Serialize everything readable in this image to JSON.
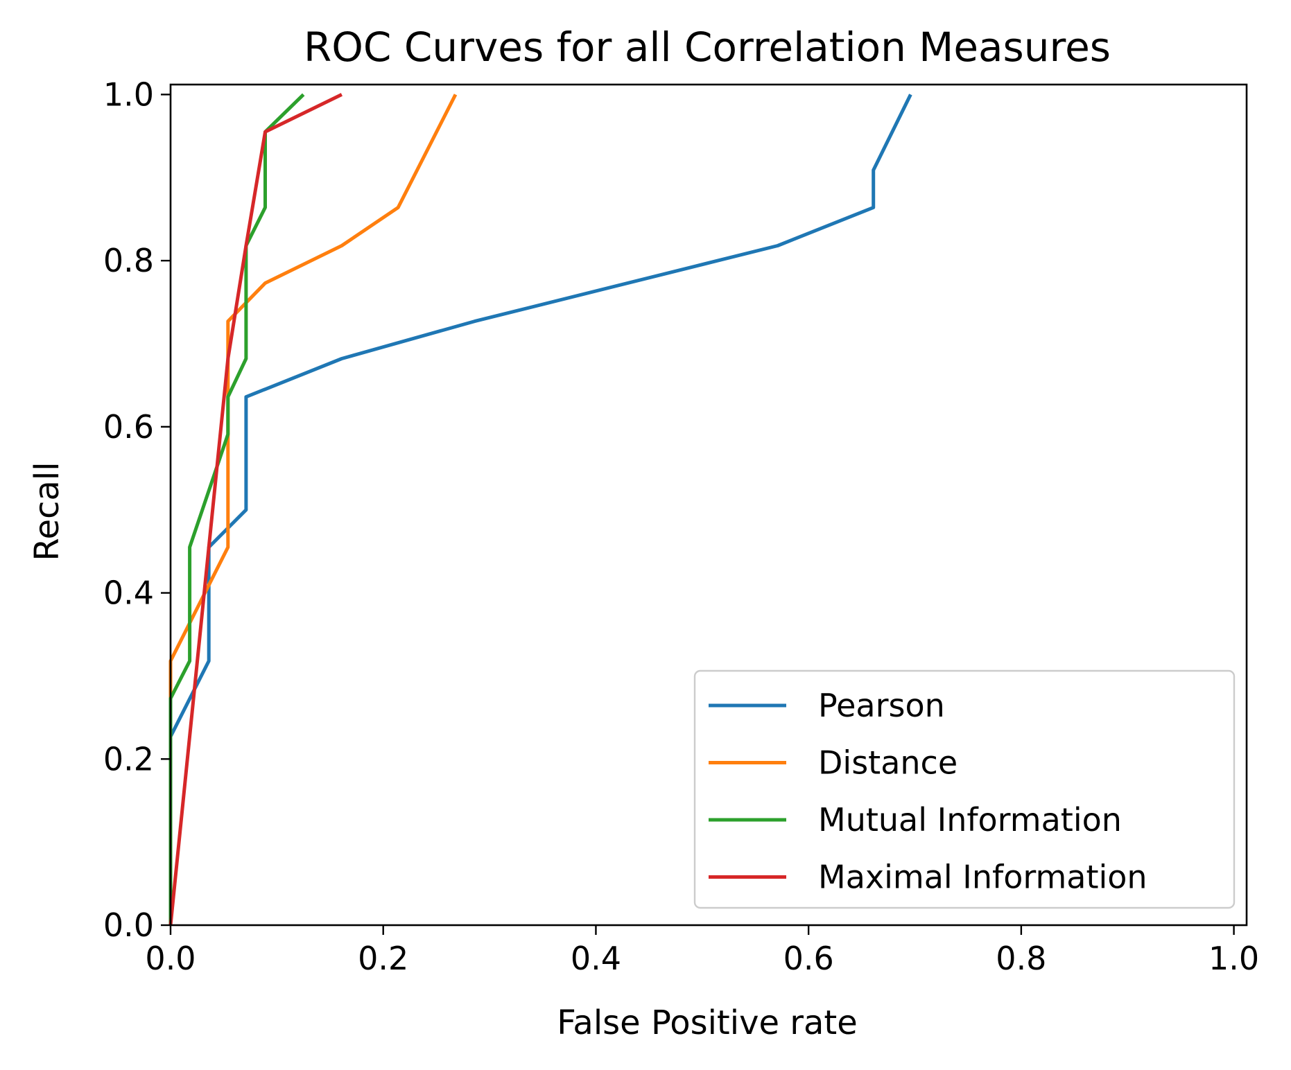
{
  "chart_data": {
    "type": "line",
    "title": "ROC Curves for all Correlation Measures",
    "xlabel": "False Positive rate",
    "ylabel": "Recall",
    "xlim": [
      0.0,
      1.0
    ],
    "ylim": [
      0.0,
      1.0
    ],
    "xticks": [
      "0.0",
      "0.2",
      "0.4",
      "0.6",
      "0.8",
      "1.0"
    ],
    "yticks": [
      "0.0",
      "0.2",
      "0.4",
      "0.6",
      "0.8",
      "1.0"
    ],
    "grid": false,
    "legend_position": "lower right",
    "series": [
      {
        "name": "Pearson",
        "color": "#1f77b4",
        "x": [
          0.0,
          0.0,
          0.036,
          0.036,
          0.071,
          0.071,
          0.161,
          0.286,
          0.571,
          0.661,
          0.661,
          0.696
        ],
        "y": [
          0.0,
          0.227,
          0.318,
          0.455,
          0.5,
          0.636,
          0.682,
          0.727,
          0.818,
          0.864,
          0.909,
          1.0
        ]
      },
      {
        "name": "Distance",
        "color": "#ff7f0e",
        "x": [
          0.0,
          0.0,
          0.054,
          0.054,
          0.089,
          0.161,
          0.214,
          0.268
        ],
        "y": [
          0.0,
          0.318,
          0.455,
          0.727,
          0.773,
          0.818,
          0.864,
          1.0
        ]
      },
      {
        "name": "Mutual Information",
        "color": "#2ca02c",
        "x": [
          0.0,
          0.0,
          0.018,
          0.018,
          0.054,
          0.054,
          0.071,
          0.071,
          0.089,
          0.089,
          0.125
        ],
        "y": [
          0.0,
          0.273,
          0.318,
          0.455,
          0.591,
          0.636,
          0.682,
          0.818,
          0.864,
          0.955,
          1.0
        ]
      },
      {
        "name": "Maximal Information",
        "color": "#d62728",
        "x": [
          0.0,
          0.036,
          0.054,
          0.071,
          0.089,
          0.161
        ],
        "y": [
          0.0,
          0.455,
          0.682,
          0.818,
          0.955,
          1.0
        ]
      }
    ]
  }
}
